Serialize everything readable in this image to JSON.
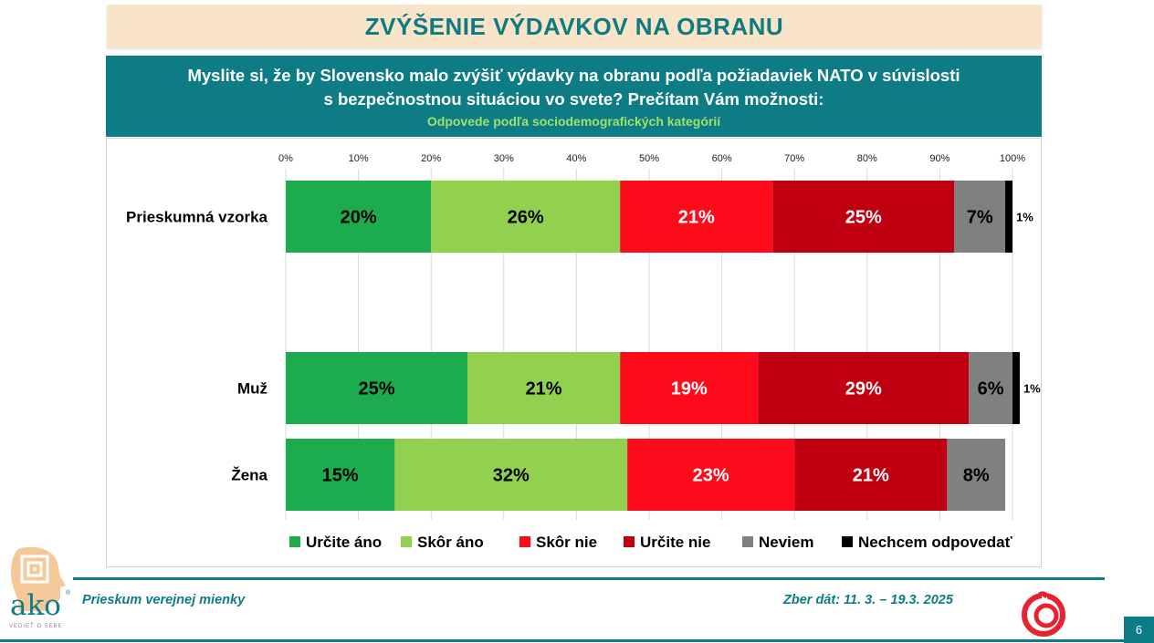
{
  "header": {
    "title": "ZVÝŠENIE VÝDAVKOV NA OBRANU",
    "question_line1": "Myslite si, že by Slovensko malo zvýšiť výdavky na obranu podľa požiadaviek NATO v súvislosti",
    "question_line2": "s bezpečnostnou situáciou vo svete? Prečítam Vám možnosti:",
    "subtitle": "Odpovede podľa sociodemografických kategórií"
  },
  "chart_data": {
    "type": "bar",
    "orientation": "horizontal",
    "stacked": "percent",
    "xlim": [
      0,
      100
    ],
    "x_ticks": [
      "0%",
      "10%",
      "20%",
      "30%",
      "40%",
      "50%",
      "60%",
      "70%",
      "80%",
      "90%",
      "100%"
    ],
    "grid": true,
    "legend_position": "bottom",
    "categories": [
      "Prieskumná vzorka",
      "Muž",
      "Žena"
    ],
    "series": [
      {
        "name": "Určite áno",
        "color": "#1cac4e",
        "values": [
          20,
          25,
          15
        ],
        "labels": [
          "20%",
          "25%",
          "15%"
        ]
      },
      {
        "name": "Skôr áno",
        "color": "#92d050",
        "values": [
          26,
          21,
          32
        ],
        "labels": [
          "26%",
          "21%",
          "32%"
        ]
      },
      {
        "name": "Skôr nie",
        "color": "#ff0a1a",
        "values": [
          21,
          19,
          23
        ],
        "labels": [
          "21%",
          "19%",
          "23%"
        ]
      },
      {
        "name": "Určite nie",
        "color": "#c00010",
        "values": [
          25,
          29,
          21
        ],
        "labels": [
          "25%",
          "29%",
          "21%"
        ]
      },
      {
        "name": "Neviem",
        "color": "#808080",
        "values": [
          7,
          6,
          8
        ],
        "labels": [
          "7%",
          "6%",
          "8%"
        ]
      },
      {
        "name": "Nechcem odpovedať",
        "color": "#000000",
        "values": [
          1,
          1,
          0
        ],
        "labels": [
          "1%",
          "1%",
          ""
        ]
      }
    ]
  },
  "footer": {
    "left_text": "Prieskum verejnej mienky",
    "right_text": "Zber dát: 11. 3. – 19.3. 2025",
    "page_number": "6",
    "logo_text": "ako",
    "logo_tagline": "VEDIEŤ O SEBE"
  }
}
